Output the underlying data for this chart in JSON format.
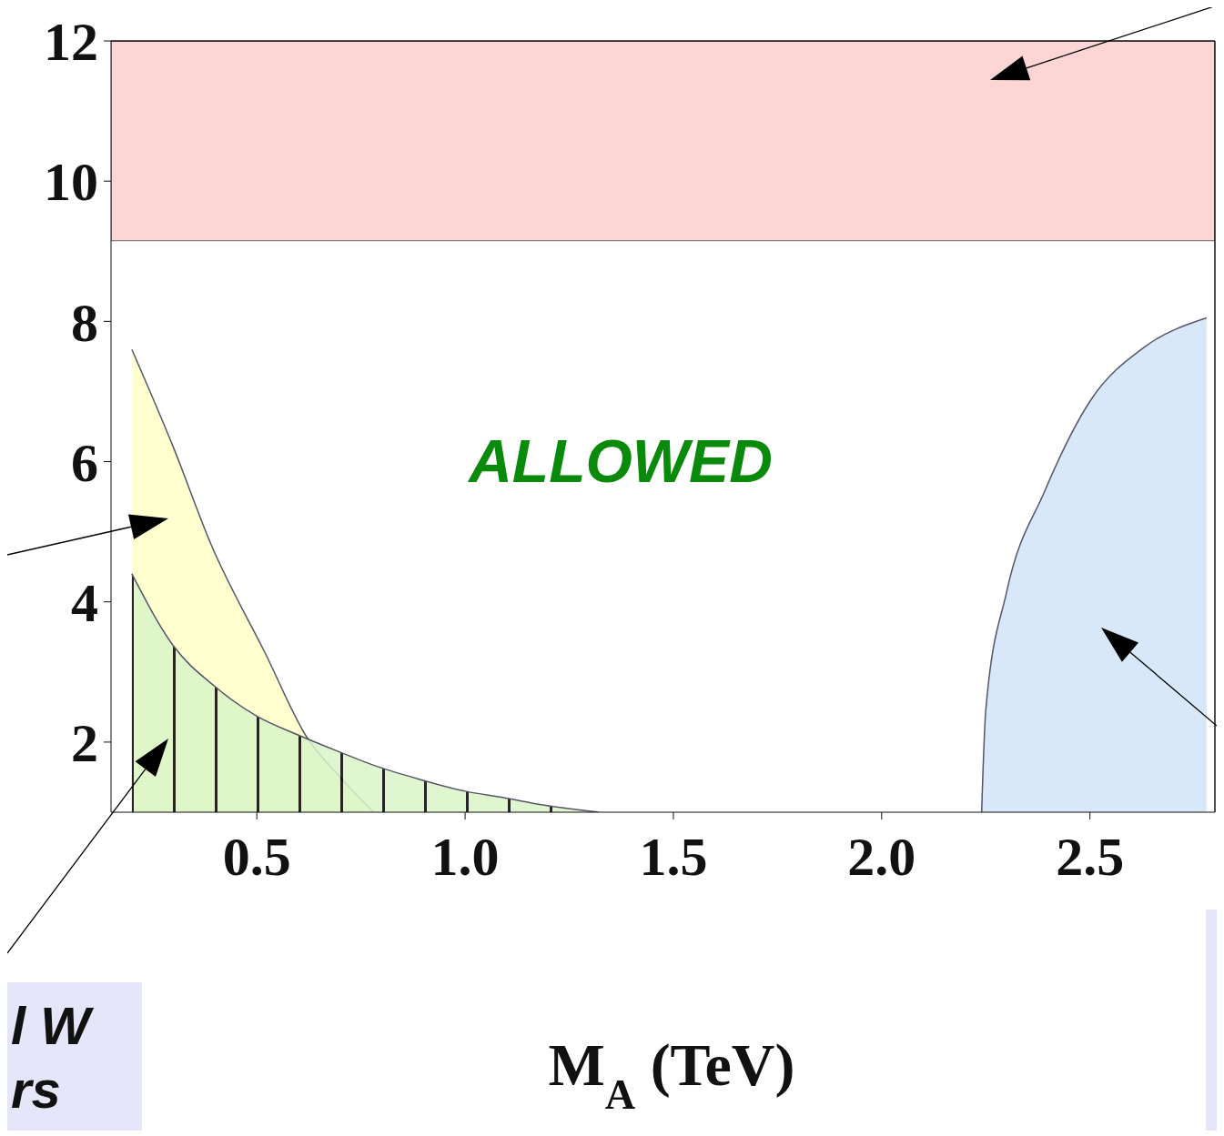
{
  "chart_data": {
    "type": "area",
    "xlabel": "M$_{A}$ (TeV)",
    "xlim": [
      0.15,
      2.8
    ],
    "ylim": [
      1,
      12
    ],
    "xticks": [
      0.5,
      {
        "value": 1,
        "label": "1.0"
      },
      1.5,
      {
        "value": 2,
        "label": "2.0"
      },
      2.5
    ],
    "yticks": [
      2,
      4,
      6,
      8,
      10,
      12
    ],
    "series": [
      {
        "color": "#ffffd0",
        "x": [
          0.2,
          0.3,
          0.39,
          0.52,
          0.62,
          0.7,
          0.78
        ],
        "values": [
          7.6,
          6.2,
          4.82,
          3.27,
          2.07,
          1.5,
          1.0
        ]
      },
      {
        "color": "#d9f5c8",
        "x": [
          0.2,
          0.3,
          0.4,
          0.5,
          0.6,
          0.69,
          0.79,
          0.89,
          1.0,
          1.09,
          1.19,
          1.32
        ],
        "values": [
          4.4,
          3.37,
          2.79,
          2.37,
          2.1,
          1.88,
          1.65,
          1.47,
          1.3,
          1.21,
          1.1,
          1.0
        ]
      },
      {
        "color": "#d8e8f8",
        "x": [
          2.24,
          2.25,
          2.3,
          2.39,
          2.5,
          2.63,
          2.78
        ],
        "values": [
          1.0,
          2.46,
          4.14,
          5.56,
          6.86,
          7.63,
          8.05
        ]
      }
    ],
    "bands": [
      {
        "axis": "y",
        "from": 9.15,
        "to": 12,
        "color": "#fdd5d5"
      }
    ],
    "annotations": [
      "ALLOWED",
      "l W",
      "rs"
    ]
  }
}
